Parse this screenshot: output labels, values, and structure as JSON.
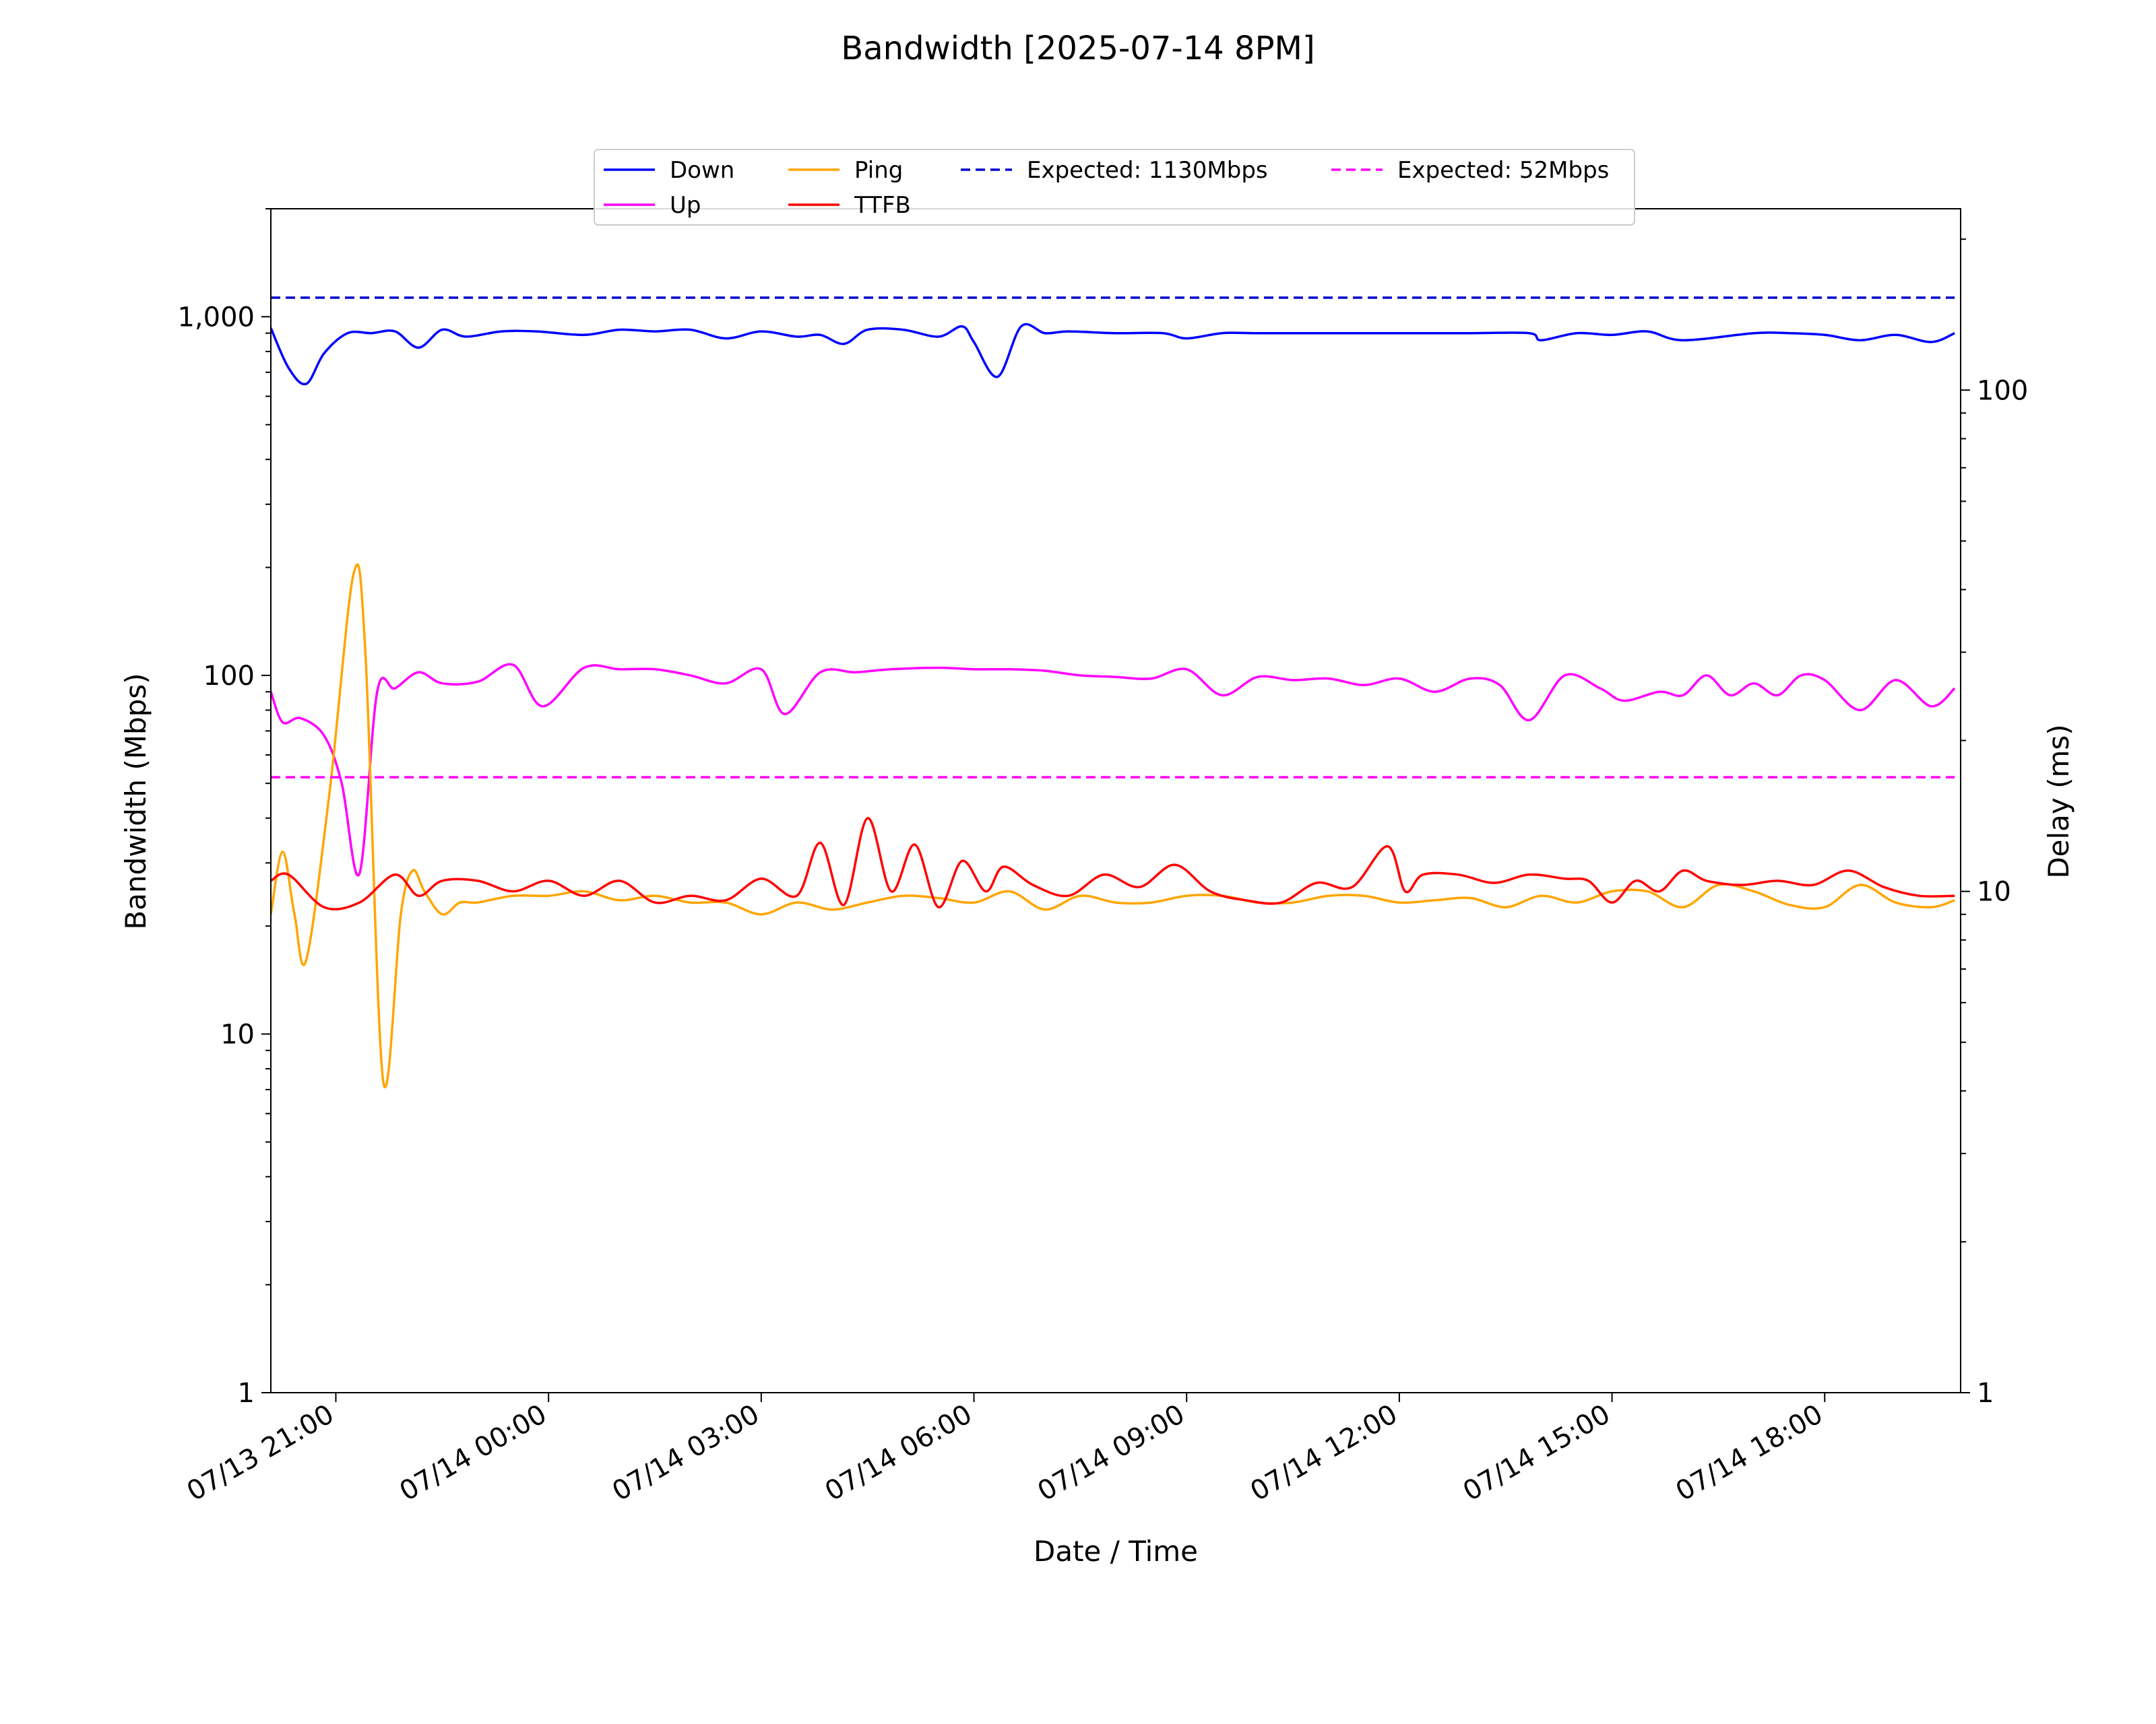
{
  "chart_data": {
    "type": "line",
    "title": "Bandwidth [2025-07-14 8PM]",
    "xlabel": "Date / Time",
    "ylabel": "Bandwidth (Mbps)",
    "ylabel_right": "Delay (ms)",
    "y_scale": "log",
    "ylim": [
      1,
      2000
    ],
    "y2_scale": "log",
    "y2lim": [
      1,
      230
    ],
    "xlim": [
      "2025-07-13 20:05",
      "2025-07-14 19:55"
    ],
    "y_ticks": [
      1,
      10,
      100,
      1000
    ],
    "y_tick_labels": [
      "1",
      "10",
      "100",
      "1,000"
    ],
    "y2_ticks": [
      1,
      10,
      100
    ],
    "y2_tick_labels": [
      "1",
      "10",
      "100"
    ],
    "x_ticks": [
      "2025-07-13 21:00",
      "2025-07-14 00:00",
      "2025-07-14 03:00",
      "2025-07-14 06:00",
      "2025-07-14 09:00",
      "2025-07-14 12:00",
      "2025-07-14 15:00",
      "2025-07-14 18:00"
    ],
    "x_tick_labels": [
      "07/13 21:00",
      "07/14 00:00",
      "07/14 03:00",
      "07/14 06:00",
      "07/14 09:00",
      "07/14 12:00",
      "07/14 15:00",
      "07/14 18:00"
    ],
    "grid": false,
    "legend_position": "top-center",
    "series": [
      {
        "name": "Down",
        "axis": "left",
        "color": "#0000ff",
        "style": "solid",
        "x": [
          "2025-07-13 20:05",
          "2025-07-13 20:20",
          "2025-07-13 20:35",
          "2025-07-13 20:50",
          "2025-07-13 21:10",
          "2025-07-13 21:30",
          "2025-07-13 21:50",
          "2025-07-13 22:10",
          "2025-07-13 22:30",
          "2025-07-13 22:50",
          "2025-07-13 23:20",
          "2025-07-13 23:50",
          "2025-07-14 00:30",
          "2025-07-14 01:00",
          "2025-07-14 01:30",
          "2025-07-14 02:00",
          "2025-07-14 02:30",
          "2025-07-14 03:00",
          "2025-07-14 03:30",
          "2025-07-14 03:50",
          "2025-07-14 04:10",
          "2025-07-14 04:30",
          "2025-07-14 05:00",
          "2025-07-14 05:30",
          "2025-07-14 05:50",
          "2025-07-14 06:00",
          "2025-07-14 06:20",
          "2025-07-14 06:40",
          "2025-07-14 07:00",
          "2025-07-14 07:20",
          "2025-07-14 08:00",
          "2025-07-14 08:40",
          "2025-07-14 09:00",
          "2025-07-14 09:30",
          "2025-07-14 10:00",
          "2025-07-14 11:00",
          "2025-07-14 12:00",
          "2025-07-14 13:00",
          "2025-07-14 13:50",
          "2025-07-14 14:00",
          "2025-07-14 14:30",
          "2025-07-14 15:00",
          "2025-07-14 15:30",
          "2025-07-14 16:00",
          "2025-07-14 17:00",
          "2025-07-14 17:30",
          "2025-07-14 18:00",
          "2025-07-14 18:30",
          "2025-07-14 19:00",
          "2025-07-14 19:30",
          "2025-07-14 19:50"
        ],
        "values": [
          930,
          720,
          650,
          790,
          900,
          900,
          910,
          820,
          920,
          880,
          910,
          910,
          890,
          920,
          910,
          920,
          870,
          910,
          880,
          890,
          840,
          920,
          920,
          880,
          940,
          850,
          680,
          940,
          900,
          910,
          900,
          900,
          870,
          900,
          900,
          900,
          900,
          900,
          900,
          860,
          900,
          890,
          910,
          860,
          900,
          900,
          890,
          860,
          890,
          850,
          900
        ]
      },
      {
        "name": "Up",
        "axis": "left",
        "color": "#ff00ff",
        "style": "solid",
        "x": [
          "2025-07-13 20:05",
          "2025-07-13 20:15",
          "2025-07-13 20:30",
          "2025-07-13 20:50",
          "2025-07-13 21:05",
          "2025-07-13 21:20",
          "2025-07-13 21:35",
          "2025-07-13 21:50",
          "2025-07-13 22:10",
          "2025-07-13 22:30",
          "2025-07-13 23:00",
          "2025-07-13 23:30",
          "2025-07-13 23:55",
          "2025-07-14 00:30",
          "2025-07-14 01:00",
          "2025-07-14 01:30",
          "2025-07-14 02:00",
          "2025-07-14 02:30",
          "2025-07-14 03:00",
          "2025-07-14 03:20",
          "2025-07-14 03:50",
          "2025-07-14 04:20",
          "2025-07-14 04:50",
          "2025-07-14 05:30",
          "2025-07-14 06:00",
          "2025-07-14 06:30",
          "2025-07-14 07:00",
          "2025-07-14 07:30",
          "2025-07-14 08:00",
          "2025-07-14 08:30",
          "2025-07-14 09:00",
          "2025-07-14 09:30",
          "2025-07-14 10:00",
          "2025-07-14 10:30",
          "2025-07-14 11:00",
          "2025-07-14 11:30",
          "2025-07-14 12:00",
          "2025-07-14 12:30",
          "2025-07-14 13:00",
          "2025-07-14 13:25",
          "2025-07-14 13:50",
          "2025-07-14 14:20",
          "2025-07-14 14:50",
          "2025-07-14 15:10",
          "2025-07-14 15:40",
          "2025-07-14 16:00",
          "2025-07-14 16:20",
          "2025-07-14 16:40",
          "2025-07-14 17:00",
          "2025-07-14 17:20",
          "2025-07-14 17:40",
          "2025-07-14 18:00",
          "2025-07-14 18:30",
          "2025-07-14 19:00",
          "2025-07-14 19:30",
          "2025-07-14 19:50"
        ],
        "values": [
          90,
          74,
          76,
          68,
          50,
          28,
          90,
          92,
          102,
          95,
          96,
          107,
          82,
          105,
          104,
          104,
          100,
          95,
          104,
          78,
          102,
          102,
          104,
          105,
          104,
          104,
          103,
          100,
          99,
          98,
          104,
          88,
          99,
          97,
          98,
          94,
          98,
          90,
          98,
          94,
          75,
          100,
          92,
          85,
          90,
          88,
          100,
          88,
          95,
          88,
          100,
          97,
          80,
          97,
          82,
          92
        ]
      },
      {
        "name": "Ping",
        "axis": "right",
        "color": "#ffa500",
        "style": "solid",
        "x": [
          "2025-07-13 20:05",
          "2025-07-13 20:15",
          "2025-07-13 20:25",
          "2025-07-13 20:35",
          "2025-07-13 20:55",
          "2025-07-13 21:15",
          "2025-07-13 21:25",
          "2025-07-13 21:40",
          "2025-07-13 21:55",
          "2025-07-13 22:05",
          "2025-07-13 22:15",
          "2025-07-13 22:30",
          "2025-07-13 22:45",
          "2025-07-13 23:00",
          "2025-07-13 23:30",
          "2025-07-14 00:00",
          "2025-07-14 00:30",
          "2025-07-14 01:00",
          "2025-07-14 01:30",
          "2025-07-14 02:00",
          "2025-07-14 02:30",
          "2025-07-14 03:00",
          "2025-07-14 03:30",
          "2025-07-14 04:00",
          "2025-07-14 04:30",
          "2025-07-14 05:00",
          "2025-07-14 05:30",
          "2025-07-14 06:00",
          "2025-07-14 06:30",
          "2025-07-14 07:00",
          "2025-07-14 07:30",
          "2025-07-14 08:00",
          "2025-07-14 08:30",
          "2025-07-14 09:00",
          "2025-07-14 09:30",
          "2025-07-14 10:00",
          "2025-07-14 10:30",
          "2025-07-14 11:00",
          "2025-07-14 11:30",
          "2025-07-14 12:00",
          "2025-07-14 12:30",
          "2025-07-14 13:00",
          "2025-07-14 13:30",
          "2025-07-14 14:00",
          "2025-07-14 14:30",
          "2025-07-14 15:00",
          "2025-07-14 15:30",
          "2025-07-14 16:00",
          "2025-07-14 16:30",
          "2025-07-14 17:00",
          "2025-07-14 17:30",
          "2025-07-14 18:00",
          "2025-07-14 18:30",
          "2025-07-14 19:00",
          "2025-07-14 19:30",
          "2025-07-14 19:50"
        ],
        "values": [
          9,
          12,
          9,
          7.3,
          16,
          43,
          30,
          4.2,
          9,
          11,
          10,
          9,
          9.5,
          9.5,
          9.8,
          9.8,
          10,
          9.6,
          9.8,
          9.5,
          9.5,
          9,
          9.5,
          9.2,
          9.5,
          9.8,
          9.7,
          9.5,
          10,
          9.2,
          9.8,
          9.5,
          9.5,
          9.8,
          9.8,
          9.5,
          9.5,
          9.8,
          9.8,
          9.5,
          9.6,
          9.7,
          9.3,
          9.8,
          9.5,
          10,
          10,
          9.3,
          10.3,
          10,
          9.4,
          9.3,
          10.3,
          9.5,
          9.3,
          9.6
        ]
      },
      {
        "name": "TTFB",
        "axis": "right",
        "color": "#ff0000",
        "style": "solid",
        "x": [
          "2025-07-13 20:05",
          "2025-07-13 20:20",
          "2025-07-13 20:50",
          "2025-07-13 21:20",
          "2025-07-13 21:50",
          "2025-07-13 22:10",
          "2025-07-13 22:30",
          "2025-07-13 23:00",
          "2025-07-13 23:30",
          "2025-07-14 00:00",
          "2025-07-14 00:30",
          "2025-07-14 01:00",
          "2025-07-14 01:30",
          "2025-07-14 02:00",
          "2025-07-14 02:30",
          "2025-07-14 03:00",
          "2025-07-14 03:30",
          "2025-07-14 03:50",
          "2025-07-14 04:10",
          "2025-07-14 04:30",
          "2025-07-14 04:50",
          "2025-07-14 05:10",
          "2025-07-14 05:30",
          "2025-07-14 05:50",
          "2025-07-14 06:10",
          "2025-07-14 06:25",
          "2025-07-14 06:50",
          "2025-07-14 07:20",
          "2025-07-14 07:50",
          "2025-07-14 08:20",
          "2025-07-14 08:50",
          "2025-07-14 09:20",
          "2025-07-14 09:50",
          "2025-07-14 10:20",
          "2025-07-14 10:50",
          "2025-07-14 11:20",
          "2025-07-14 11:50",
          "2025-07-14 12:05",
          "2025-07-14 12:20",
          "2025-07-14 12:50",
          "2025-07-14 13:20",
          "2025-07-14 13:50",
          "2025-07-14 14:20",
          "2025-07-14 14:40",
          "2025-07-14 15:00",
          "2025-07-14 15:20",
          "2025-07-14 15:40",
          "2025-07-14 16:00",
          "2025-07-14 16:20",
          "2025-07-14 16:50",
          "2025-07-14 17:20",
          "2025-07-14 17:50",
          "2025-07-14 18:20",
          "2025-07-14 18:50",
          "2025-07-14 19:20",
          "2025-07-14 19:50"
        ],
        "values": [
          10.5,
          10.8,
          9.3,
          9.5,
          10.8,
          9.8,
          10.5,
          10.5,
          10.0,
          10.5,
          9.8,
          10.5,
          9.5,
          9.8,
          9.6,
          10.6,
          9.8,
          12.5,
          9.4,
          14,
          10,
          12.4,
          9.3,
          11.5,
          10.0,
          11.2,
          10.3,
          9.8,
          10.8,
          10.2,
          11.3,
          10.0,
          9.6,
          9.5,
          10.4,
          10.2,
          12.3,
          10.0,
          10.8,
          10.8,
          10.4,
          10.8,
          10.6,
          10.5,
          9.5,
          10.5,
          10.0,
          11.0,
          10.5,
          10.3,
          10.5,
          10.3,
          11.0,
          10.2,
          9.8,
          9.8
        ]
      },
      {
        "name": "Expected: 1130Mbps",
        "axis": "left",
        "color": "#0000cc",
        "style": "dashed",
        "x": [
          "2025-07-13 20:05",
          "2025-07-14 19:50"
        ],
        "values": [
          1130,
          1130
        ]
      },
      {
        "name": "Expected: 52Mbps",
        "axis": "left",
        "color": "#ff00ff",
        "style": "dashed",
        "x": [
          "2025-07-13 20:05",
          "2025-07-14 19:50"
        ],
        "values": [
          52,
          52
        ]
      }
    ]
  }
}
